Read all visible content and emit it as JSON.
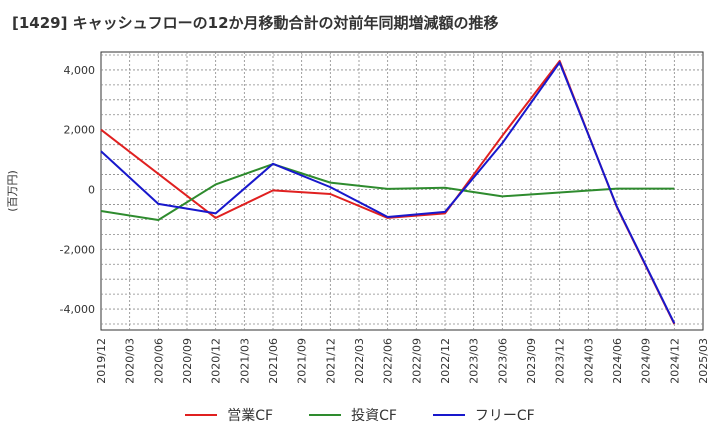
{
  "chart_data": {
    "type": "line",
    "title": "[1429]  キャッシュフローの12か月移動合計の対前年同期増減額の推移",
    "ylabel": "(百万円)",
    "xlabel": "",
    "ylim": [
      -4700,
      4600
    ],
    "yticks": [
      4000,
      2000,
      0,
      -2000,
      -4000
    ],
    "ytick_labels": [
      "4,000",
      "2,000",
      "0",
      "-2,000",
      "-4,000"
    ],
    "categories": [
      "2019/12",
      "2020/03",
      "2020/06",
      "2020/09",
      "2020/12",
      "2021/03",
      "2021/06",
      "2021/09",
      "2021/12",
      "2022/03",
      "2022/06",
      "2022/09",
      "2022/12",
      "2023/03",
      "2023/06",
      "2023/09",
      "2023/12",
      "2024/03",
      "2024/06",
      "2024/09",
      "2024/12",
      "2025/03"
    ],
    "grid": true,
    "legend_position": "bottom",
    "series": [
      {
        "name": "営業CF",
        "color": "#e02020",
        "values": [
          2000,
          null,
          null,
          null,
          -950,
          null,
          -30,
          null,
          -150,
          null,
          -950,
          null,
          -800,
          null,
          1800,
          null,
          4300,
          null,
          -600,
          null,
          -4500,
          null
        ]
      },
      {
        "name": "投資CF",
        "color": "#2e8b2e",
        "values": [
          -720,
          null,
          -1020,
          null,
          170,
          null,
          850,
          null,
          230,
          null,
          20,
          null,
          60,
          null,
          -230,
          null,
          -100,
          null,
          30,
          null,
          30,
          null
        ]
      },
      {
        "name": "フリーCF",
        "color": "#1818cc",
        "values": [
          1280,
          null,
          -480,
          null,
          -800,
          null,
          860,
          null,
          80,
          null,
          -920,
          null,
          -750,
          null,
          1550,
          null,
          4250,
          null,
          -580,
          null,
          -4480,
          null
        ]
      }
    ]
  }
}
